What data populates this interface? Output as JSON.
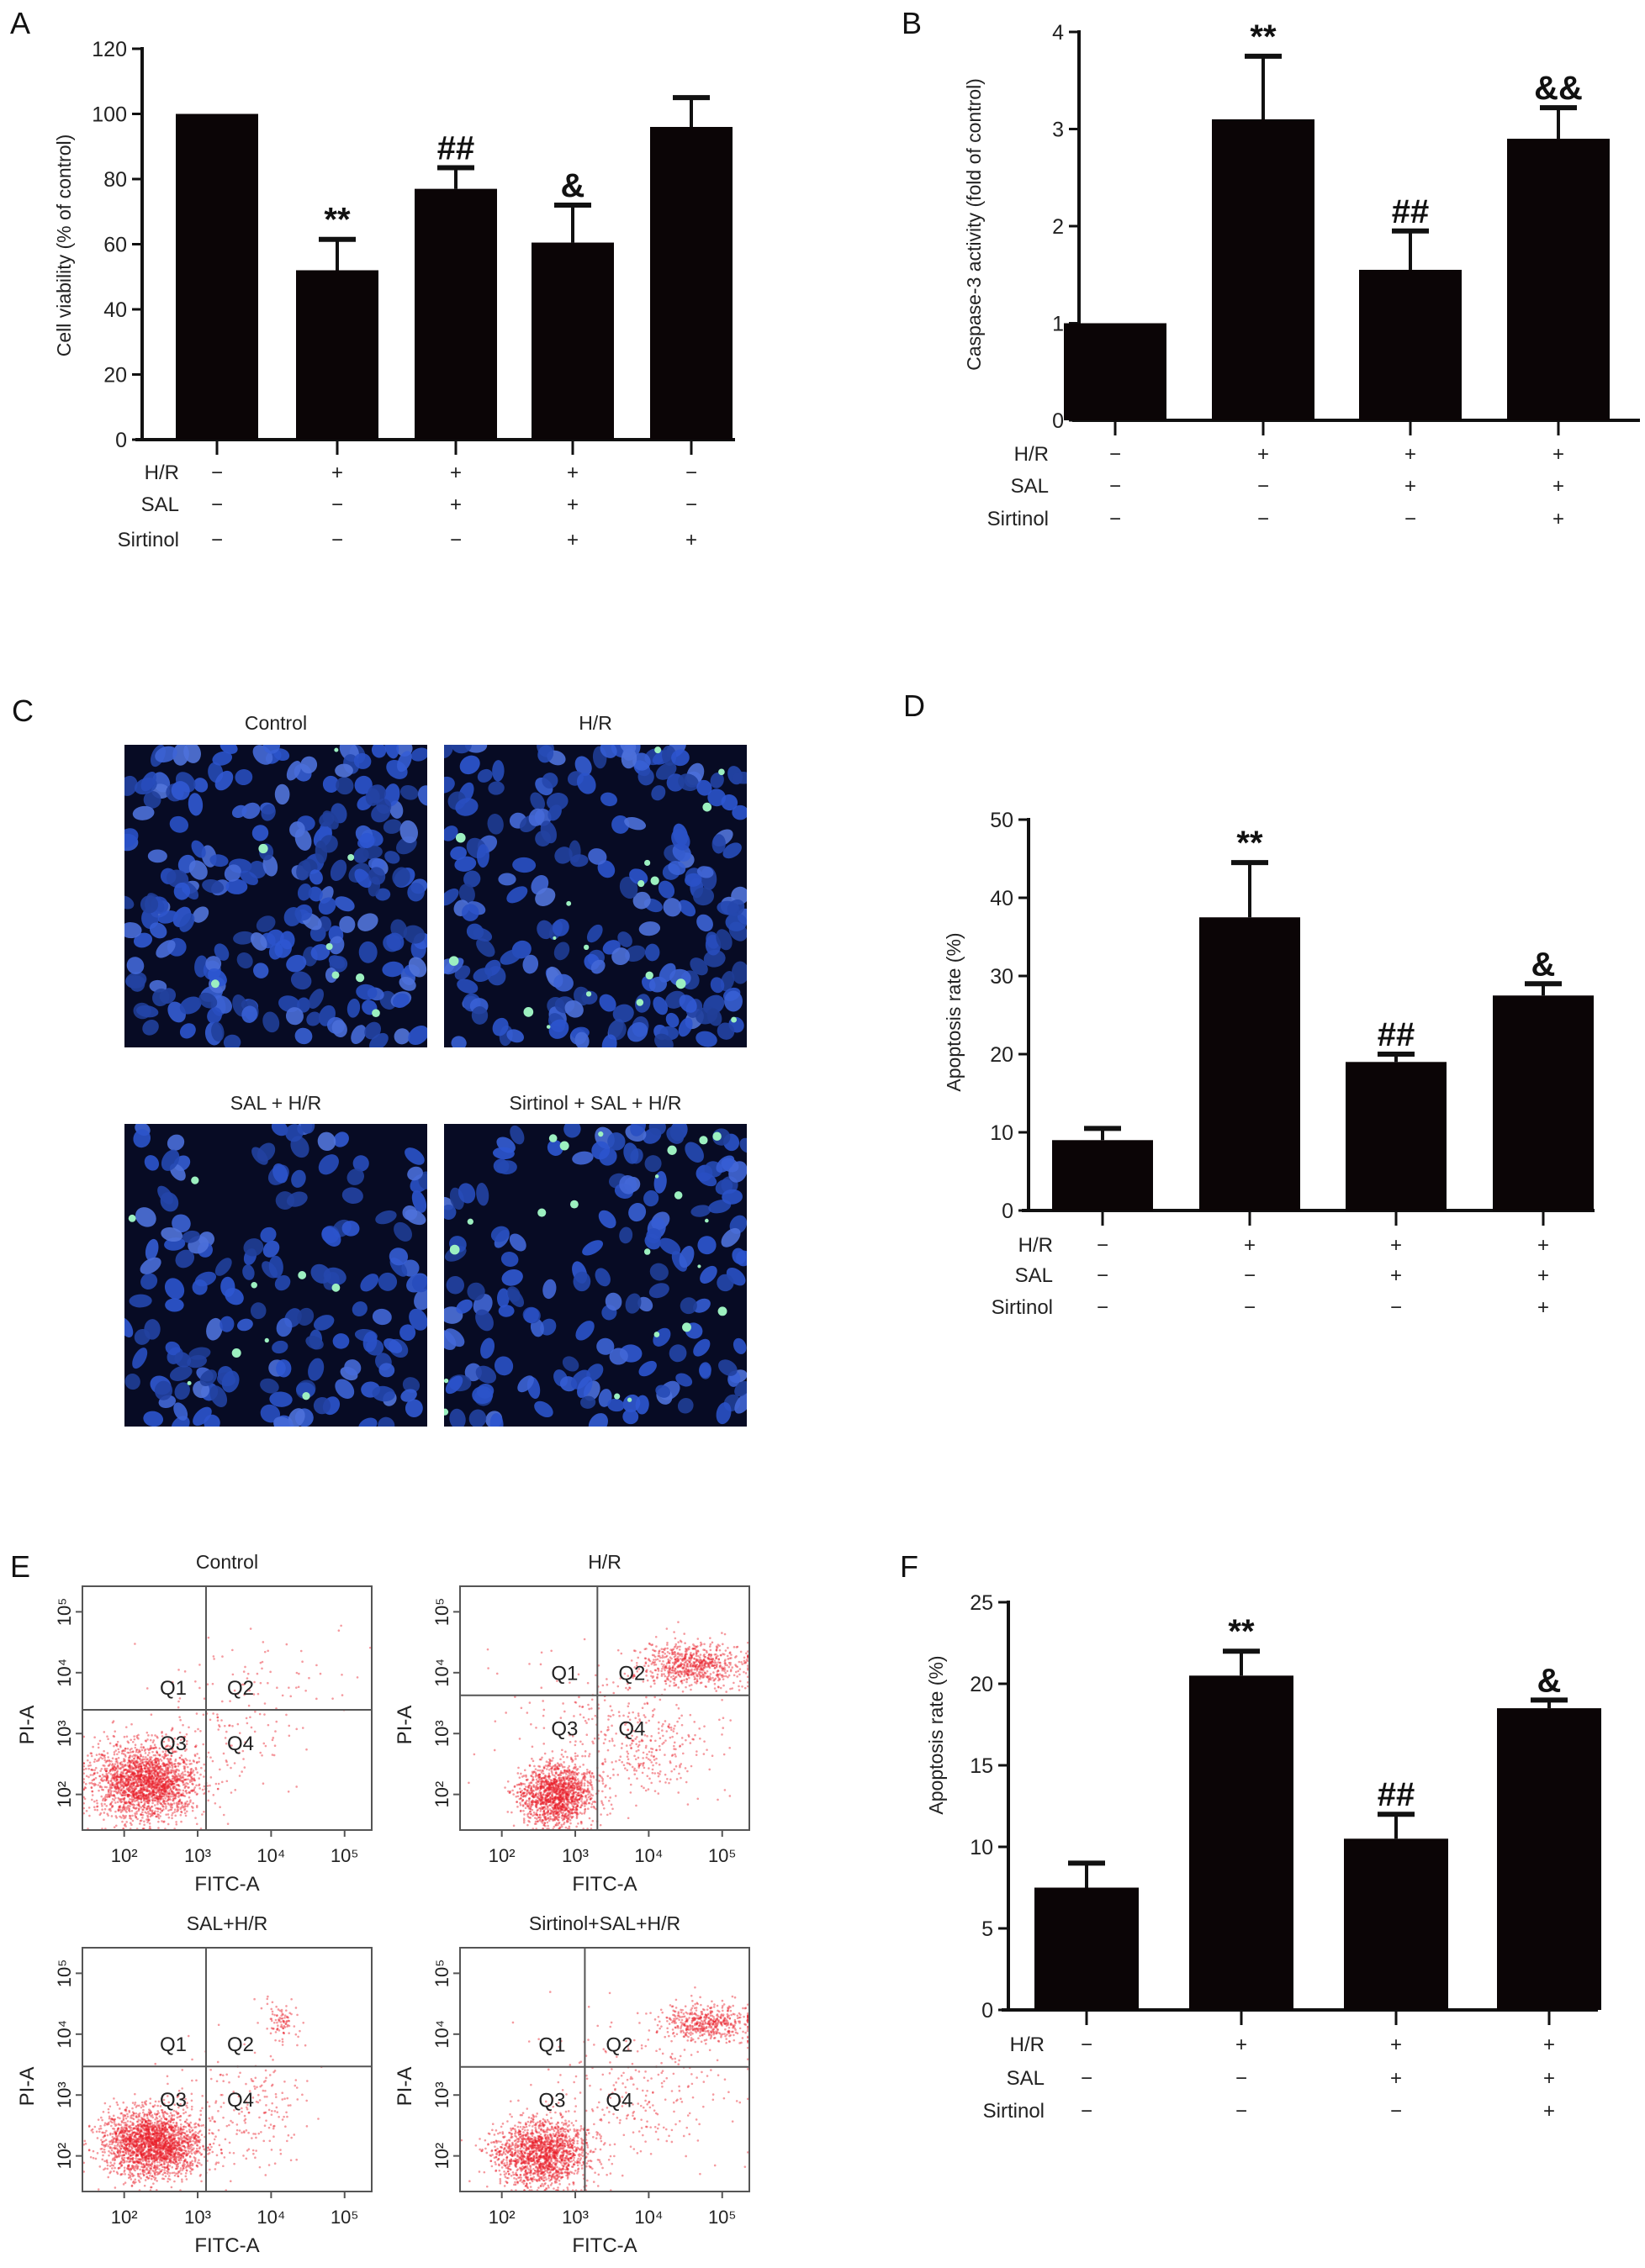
{
  "panels": {
    "A": "A",
    "B": "B",
    "C": "C",
    "D": "D",
    "E": "E",
    "F": "F"
  },
  "fluorescence_images": {
    "titles": [
      "Control",
      "H/R",
      "SAL + H/R",
      "Sirtinol + SAL + H/R"
    ],
    "colors": {
      "background": "#070b24",
      "nuclei": "#2443a8",
      "apoptotic": "#9cf0c0"
    }
  },
  "chart_data": [
    {
      "id": "A",
      "type": "bar",
      "ylabel": "Cell viability (% of control)",
      "ylim": [
        0,
        120
      ],
      "yticks": [
        0,
        20,
        40,
        60,
        80,
        100,
        120
      ],
      "values": [
        100,
        52,
        77,
        60.5,
        96
      ],
      "errors": [
        0,
        9.5,
        6.5,
        11.5,
        9
      ],
      "significance": [
        "",
        "**",
        "##",
        "&",
        ""
      ],
      "treatments": [
        {
          "label": "H/R",
          "values": [
            "−",
            "+",
            "+",
            "+",
            "−"
          ]
        },
        {
          "label": "SAL",
          "values": [
            "−",
            "−",
            "+",
            "+",
            "−"
          ]
        },
        {
          "label": "Sirtinol",
          "values": [
            "−",
            "−",
            "−",
            "+",
            "+"
          ]
        }
      ],
      "bar_color": "#0b0506"
    },
    {
      "id": "B",
      "type": "bar",
      "ylabel": "Caspase-3 activity (fold of control)",
      "ylim": [
        0,
        4
      ],
      "yticks": [
        0,
        1,
        2,
        3,
        4
      ],
      "values": [
        1,
        3.1,
        1.55,
        2.9
      ],
      "errors": [
        0,
        0.65,
        0.4,
        0.32
      ],
      "significance": [
        "",
        "**",
        "##",
        "&&"
      ],
      "treatments": [
        {
          "label": "H/R",
          "values": [
            "−",
            "+",
            "+",
            "+"
          ]
        },
        {
          "label": "SAL",
          "values": [
            "−",
            "−",
            "+",
            "+"
          ]
        },
        {
          "label": "Sirtinol",
          "values": [
            "−",
            "−",
            "−",
            "+"
          ]
        }
      ],
      "bar_color": "#0b0506"
    },
    {
      "id": "D",
      "type": "bar",
      "ylabel": "Apoptosis rate (%)",
      "ylim": [
        0,
        50
      ],
      "yticks": [
        0,
        10,
        20,
        30,
        40,
        50
      ],
      "values": [
        9,
        37.5,
        19,
        27.5
      ],
      "errors": [
        1.5,
        7,
        1,
        1.5
      ],
      "significance": [
        "",
        "**",
        "##",
        "&"
      ],
      "treatments": [
        {
          "label": "H/R",
          "values": [
            "−",
            "+",
            "+",
            "+"
          ]
        },
        {
          "label": "SAL",
          "values": [
            "−",
            "−",
            "+",
            "+"
          ]
        },
        {
          "label": "Sirtinol",
          "values": [
            "−",
            "−",
            "−",
            "+"
          ]
        }
      ],
      "bar_color": "#0b0506"
    },
    {
      "id": "F",
      "type": "bar",
      "ylabel": "Apoptosis rate (%)",
      "ylim": [
        0,
        25
      ],
      "yticks": [
        0,
        5,
        10,
        15,
        20,
        25
      ],
      "values": [
        7.5,
        20.5,
        10.5,
        18.5
      ],
      "errors": [
        1.5,
        1.5,
        1.5,
        0.5
      ],
      "significance": [
        "",
        "**",
        "##",
        "&"
      ],
      "treatments": [
        {
          "label": "H/R",
          "values": [
            "−",
            "+",
            "+",
            "+"
          ]
        },
        {
          "label": "SAL",
          "values": [
            "−",
            "−",
            "+",
            "+"
          ]
        },
        {
          "label": "Sirtinol",
          "values": [
            "−",
            "−",
            "−",
            "+"
          ]
        }
      ],
      "bar_color": "#0b0506"
    },
    {
      "id": "E",
      "type": "scatter",
      "xlabel": "FITC-A",
      "ylabel": "PI-A",
      "xscale": "log",
      "yscale": "log",
      "xlim": [
        27,
        234000
      ],
      "ylim": [
        26,
        263000
      ],
      "xticks": [
        {
          "value": 100,
          "label": "10²"
        },
        {
          "value": 1000,
          "label": "10³"
        },
        {
          "value": 10000,
          "label": "10⁴"
        },
        {
          "value": 100000,
          "label": "10⁵"
        }
      ],
      "yticks": [
        {
          "value": 100,
          "label": "10²"
        },
        {
          "value": 1000,
          "label": "10³"
        },
        {
          "value": 10000,
          "label": "10⁴"
        },
        {
          "value": 100000,
          "label": "10⁵"
        }
      ],
      "quadrants": [
        "Q1",
        "Q2",
        "Q3",
        "Q4"
      ],
      "point_color": "#e8202a",
      "plots": [
        {
          "title": "Control",
          "gate": [
            1300,
            2450
          ]
        },
        {
          "title": "H/R",
          "gate": [
            2000,
            4250
          ]
        },
        {
          "title": "SAL+H/R",
          "gate": [
            1300,
            2950
          ]
        },
        {
          "title": "Sirtinol+SAL+H/R",
          "gate": [
            1350,
            2900
          ]
        }
      ]
    }
  ]
}
